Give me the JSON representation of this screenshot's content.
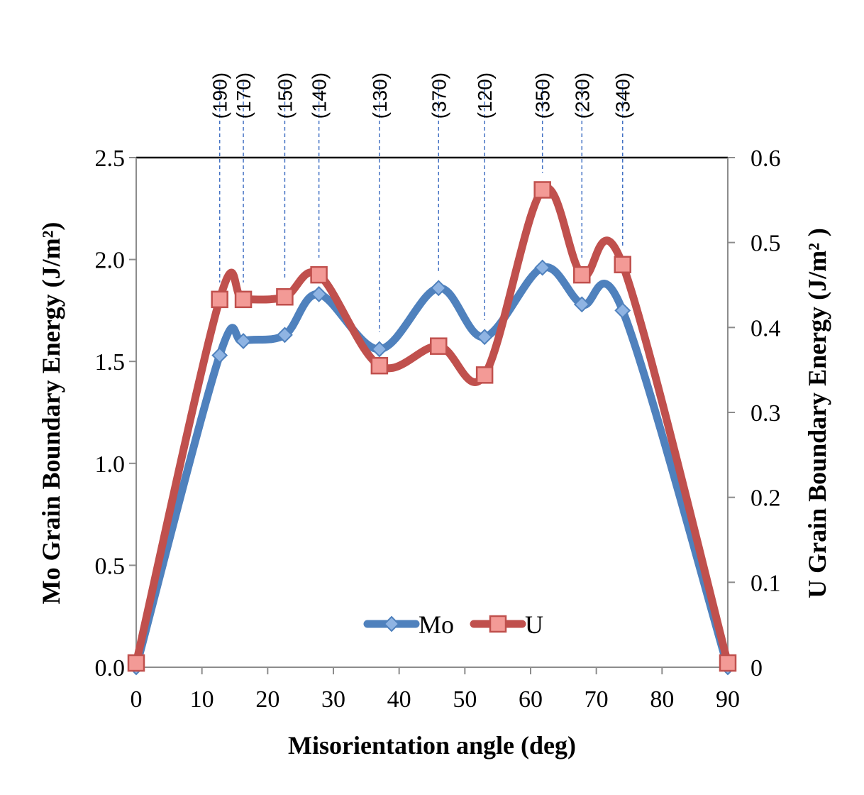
{
  "chart_data": {
    "type": "line",
    "xlabel": "Misorientation angle (deg)",
    "ylabel": "Mo Grain Boundary Energy (J/m²)",
    "y2label": "U Grain Boundary Energy (J/m² )",
    "xlim": [
      0,
      90
    ],
    "ylim": [
      0,
      2.5
    ],
    "y2lim": [
      0,
      0.6
    ],
    "x_ticks": [
      "0",
      "10",
      "20",
      "30",
      "40",
      "50",
      "60",
      "70",
      "80",
      "90"
    ],
    "y_ticks": [
      "0.0",
      "0.5",
      "1.0",
      "1.5",
      "2.0",
      "2.5"
    ],
    "y2_ticks": [
      "0",
      "0.1",
      "0.2",
      "0.3",
      "0.4",
      "0.5",
      "0.6"
    ],
    "legend_position": "bottom-center",
    "series": [
      {
        "name": "Mo",
        "axis": "left",
        "color": "#4f81bd",
        "marker": "diamond",
        "x": [
          0,
          12.7,
          16.3,
          22.6,
          27.8,
          37.0,
          46.0,
          53.0,
          61.8,
          67.8,
          74.0,
          90
        ],
        "values": [
          0.0,
          1.53,
          1.6,
          1.63,
          1.83,
          1.56,
          1.86,
          1.62,
          1.96,
          1.78,
          1.75,
          0.0
        ]
      },
      {
        "name": "U",
        "axis": "right",
        "color": "#c0504d",
        "marker": "square",
        "x": [
          0,
          12.7,
          16.3,
          22.6,
          27.8,
          37.0,
          46.0,
          53.0,
          61.8,
          67.8,
          74.0,
          90
        ],
        "values": [
          0.005,
          0.433,
          0.433,
          0.436,
          0.462,
          0.355,
          0.378,
          0.344,
          0.562,
          0.462,
          0.474,
          0.005
        ]
      }
    ],
    "annotations": [
      {
        "label": "(190)",
        "x": 12.7
      },
      {
        "label": "(170)",
        "x": 16.3
      },
      {
        "label": "(150)",
        "x": 22.6
      },
      {
        "label": "(140)",
        "x": 27.8
      },
      {
        "label": "(130)",
        "x": 37.0
      },
      {
        "label": "(370)",
        "x": 46.0
      },
      {
        "label": "(120)",
        "x": 53.0
      },
      {
        "label": "(350)",
        "x": 61.8
      },
      {
        "label": "(230)",
        "x": 67.8
      },
      {
        "label": "(340)",
        "x": 74.0
      }
    ]
  }
}
